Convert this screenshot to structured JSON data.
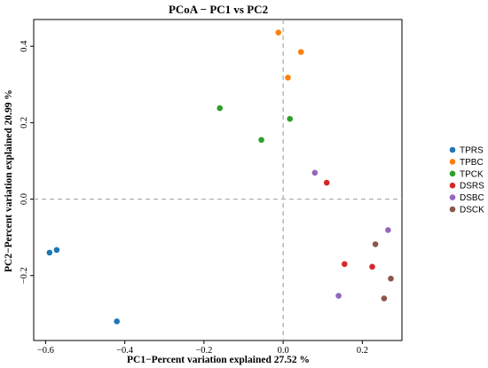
{
  "chart_data": {
    "type": "scatter",
    "title": "PCoA − PC1 vs PC2",
    "xlabel": "PC1−Percent variation explained 27.52 %",
    "ylabel": "PC2−Percent variation explained 20.99 %",
    "xlim": [
      -0.63,
      0.3
    ],
    "ylim": [
      -0.37,
      0.47
    ],
    "xticks": [
      "−0.6",
      "−0.4",
      "−0.2",
      "0.0",
      "0.2"
    ],
    "xtick_values": [
      -0.6,
      -0.4,
      -0.2,
      0.0,
      0.2
    ],
    "yticks": [
      "−0.2",
      "0.0",
      "0.2",
      "0.4"
    ],
    "ytick_values": [
      -0.2,
      0.0,
      0.2,
      0.4
    ],
    "reference_lines": {
      "x": 0,
      "y": 0,
      "style": "dashed"
    },
    "grid": false,
    "legend_position": "right",
    "series": [
      {
        "name": "TPRS",
        "color": "#1f77b4",
        "points": [
          [
            -0.59,
            -0.14
          ],
          [
            -0.572,
            -0.133
          ],
          [
            -0.42,
            -0.32
          ]
        ]
      },
      {
        "name": "TPBC",
        "color": "#ff7f0e",
        "points": [
          [
            -0.012,
            0.436
          ],
          [
            0.045,
            0.385
          ],
          [
            0.012,
            0.318
          ]
        ]
      },
      {
        "name": "TPCK",
        "color": "#2ca02c",
        "points": [
          [
            -0.16,
            0.238
          ],
          [
            0.017,
            0.21
          ],
          [
            -0.055,
            0.155
          ]
        ]
      },
      {
        "name": "DSRS",
        "color": "#d62728",
        "points": [
          [
            0.11,
            0.043
          ],
          [
            0.155,
            -0.17
          ],
          [
            0.225,
            -0.177
          ]
        ]
      },
      {
        "name": "DSBC",
        "color": "#9467bd",
        "points": [
          [
            0.08,
            0.069
          ],
          [
            0.265,
            -0.081
          ],
          [
            0.14,
            -0.253
          ]
        ]
      },
      {
        "name": "DSCK",
        "color": "#8c564b",
        "points": [
          [
            0.233,
            -0.118
          ],
          [
            0.272,
            -0.208
          ],
          [
            0.255,
            -0.26
          ]
        ]
      }
    ]
  }
}
